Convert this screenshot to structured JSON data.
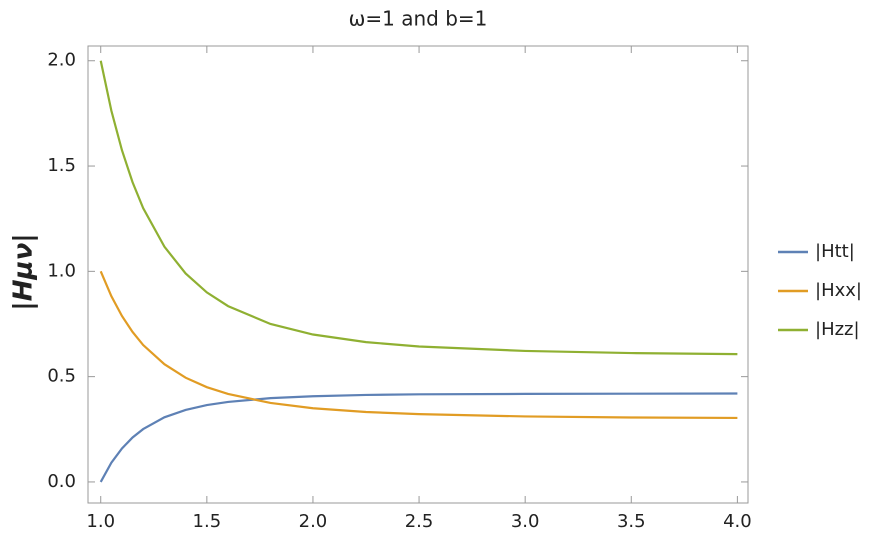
{
  "chart_data": {
    "type": "line",
    "title": "ω=1 and b=1",
    "y_label": "|Hμν|",
    "x": [
      1.0,
      1.05,
      1.1,
      1.15,
      1.2,
      1.3,
      1.4,
      1.5,
      1.6,
      1.8,
      2.0,
      2.25,
      2.5,
      3.0,
      3.5,
      4.0
    ],
    "series": [
      {
        "name": "|Htt|",
        "color": "#5e81b5",
        "values": [
          0.0,
          0.091,
          0.159,
          0.211,
          0.251,
          0.307,
          0.342,
          0.365,
          0.38,
          0.398,
          0.407,
          0.413,
          0.416,
          0.418,
          0.419,
          0.42
        ]
      },
      {
        "name": "|Hxx|",
        "color": "#e19c24",
        "values": [
          1.0,
          0.882,
          0.788,
          0.712,
          0.65,
          0.559,
          0.495,
          0.45,
          0.418,
          0.375,
          0.35,
          0.332,
          0.322,
          0.311,
          0.306,
          0.304
        ]
      },
      {
        "name": "|Hzz|",
        "color": "#8fb032",
        "values": [
          2.0,
          1.763,
          1.575,
          1.423,
          1.3,
          1.117,
          0.99,
          0.9,
          0.835,
          0.75,
          0.7,
          0.664,
          0.643,
          0.622,
          0.612,
          0.607
        ]
      }
    ],
    "xlim": [
      0.94,
      4.05
    ],
    "ylim": [
      -0.1,
      2.07
    ],
    "xticks": [
      {
        "value": 1,
        "label": "1.0"
      },
      {
        "value": 1.5,
        "label": "1.5"
      },
      {
        "value": 2,
        "label": "2.0"
      },
      {
        "value": 2.5,
        "label": "2.5"
      },
      {
        "value": 3,
        "label": "3.0"
      },
      {
        "value": 3.5,
        "label": "3.5"
      },
      {
        "value": 4,
        "label": "4.0"
      }
    ],
    "yticks": [
      {
        "value": 0,
        "label": "0.0"
      },
      {
        "value": 0.5,
        "label": "0.5"
      },
      {
        "value": 1,
        "label": "1.0"
      },
      {
        "value": 1.5,
        "label": "1.5"
      },
      {
        "value": 2,
        "label": "2.0"
      }
    ],
    "legend": "right"
  }
}
